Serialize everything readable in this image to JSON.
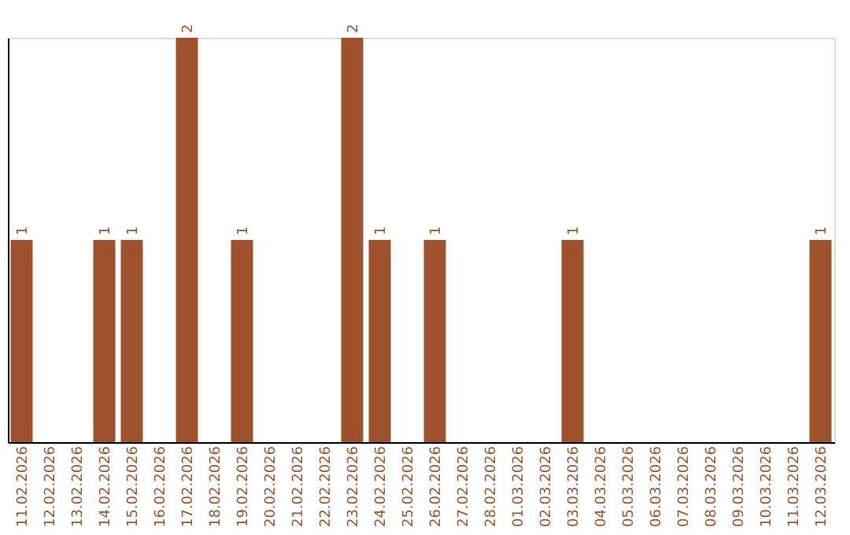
{
  "chart_data": {
    "type": "bar",
    "categories": [
      "11.02.2026",
      "12.02.2026",
      "13.02.2026",
      "14.02.2026",
      "15.02.2026",
      "16.02.2026",
      "17.02.2026",
      "18.02.2026",
      "19.02.2026",
      "20.02.2026",
      "21.02.2026",
      "22.02.2026",
      "23.02.2026",
      "24.02.2026",
      "25.02.2026",
      "26.02.2026",
      "27.02.2026",
      "28.02.2026",
      "01.03.2026",
      "02.03.2026",
      "03.03.2026",
      "04.03.2026",
      "05.03.2026",
      "06.03.2026",
      "07.03.2026",
      "08.03.2026",
      "09.03.2026",
      "10.03.2026",
      "11.03.2026",
      "12.03.2026"
    ],
    "values": [
      1,
      0,
      0,
      1,
      1,
      0,
      2,
      0,
      1,
      0,
      0,
      0,
      2,
      1,
      0,
      1,
      0,
      0,
      0,
      0,
      1,
      0,
      0,
      0,
      0,
      0,
      0,
      0,
      0,
      1
    ],
    "value_labels": [
      "1",
      null,
      null,
      "1",
      "1",
      null,
      "2",
      null,
      "1",
      null,
      null,
      null,
      "2",
      "1",
      null,
      "1",
      null,
      null,
      null,
      null,
      "1",
      null,
      null,
      null,
      null,
      null,
      null,
      null,
      null,
      "1"
    ],
    "color": "#a0522d",
    "ylim": [
      0,
      2
    ],
    "grid": false
  }
}
